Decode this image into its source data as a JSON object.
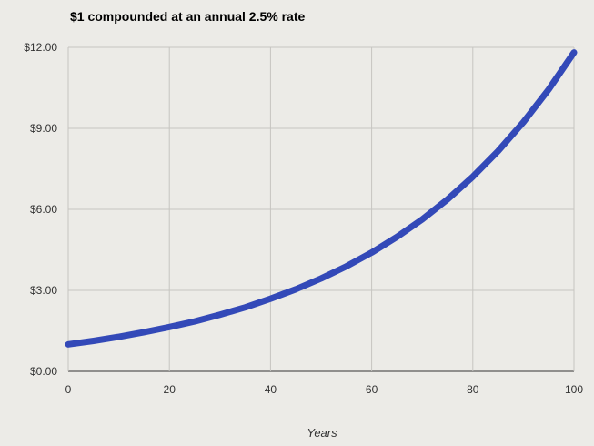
{
  "chart_data": {
    "type": "line",
    "title": "$1 compounded at an annual 2.5% rate",
    "xlabel": "Years",
    "ylabel": "",
    "xlim": [
      0,
      100
    ],
    "ylim": [
      0,
      12
    ],
    "x_ticks": [
      0,
      20,
      40,
      60,
      80,
      100
    ],
    "x_tick_labels": [
      "0",
      "20",
      "40",
      "60",
      "80",
      "100"
    ],
    "y_ticks": [
      0,
      3,
      6,
      9,
      12
    ],
    "y_tick_labels": [
      "$0.00",
      "$3.00",
      "$6.00",
      "$9.00",
      "$12.00"
    ],
    "grid": true,
    "legend": "none",
    "series": [
      {
        "color": "#3349b8",
        "x": [
          0,
          5,
          10,
          15,
          20,
          25,
          30,
          35,
          40,
          45,
          50,
          55,
          60,
          65,
          70,
          75,
          80,
          85,
          90,
          95,
          100
        ],
        "values": [
          1.0,
          1.13,
          1.28,
          1.45,
          1.64,
          1.85,
          2.1,
          2.37,
          2.69,
          3.04,
          3.44,
          3.89,
          4.4,
          4.98,
          5.63,
          6.37,
          7.21,
          8.16,
          9.23,
          10.44,
          11.81
        ]
      }
    ]
  }
}
